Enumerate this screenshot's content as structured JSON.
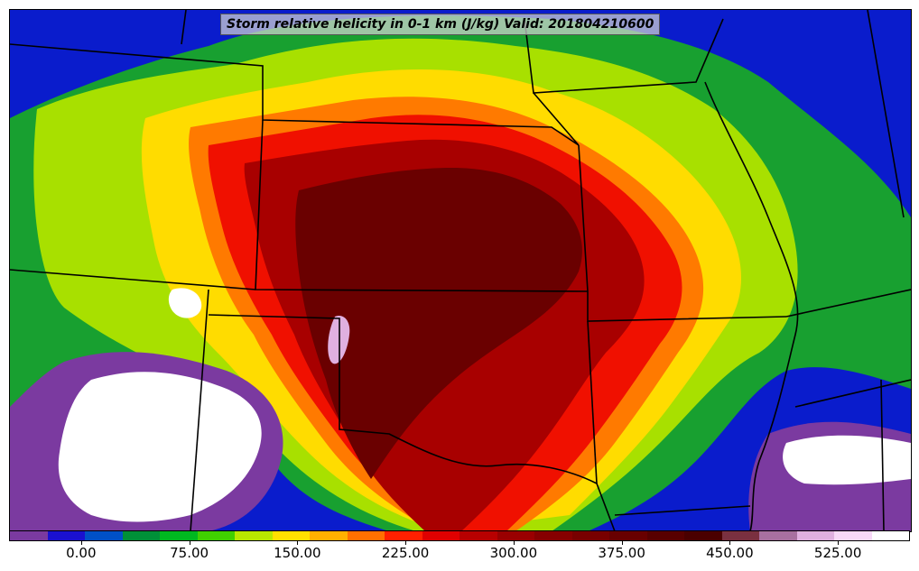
{
  "title": "Storm relative helicity in 0-1 km (J/kg) Valid: 201804210600",
  "colorbar": {
    "colors": [
      "#7b3aa0",
      "#1a10d0",
      "#0050c8",
      "#009038",
      "#00b820",
      "#40d000",
      "#b8e800",
      "#ffe000",
      "#ffb000",
      "#ff7000",
      "#ff2000",
      "#e00000",
      "#b80000",
      "#9a0000",
      "#860000",
      "#780000",
      "#680000",
      "#580000",
      "#4a0000",
      "#7a3040",
      "#a870a0",
      "#e0b0e0",
      "#f8d8f8",
      "#ffffff"
    ],
    "tick_labels": [
      "0.00",
      "75.00",
      "150.00",
      "225.00",
      "300.00",
      "375.00",
      "450.00",
      "525.00"
    ],
    "tick_values": [
      0,
      75,
      150,
      225,
      300,
      375,
      450,
      525
    ],
    "range": [
      -50,
      575
    ]
  },
  "map_fields": {
    "background": "#0a1ccc"
  }
}
